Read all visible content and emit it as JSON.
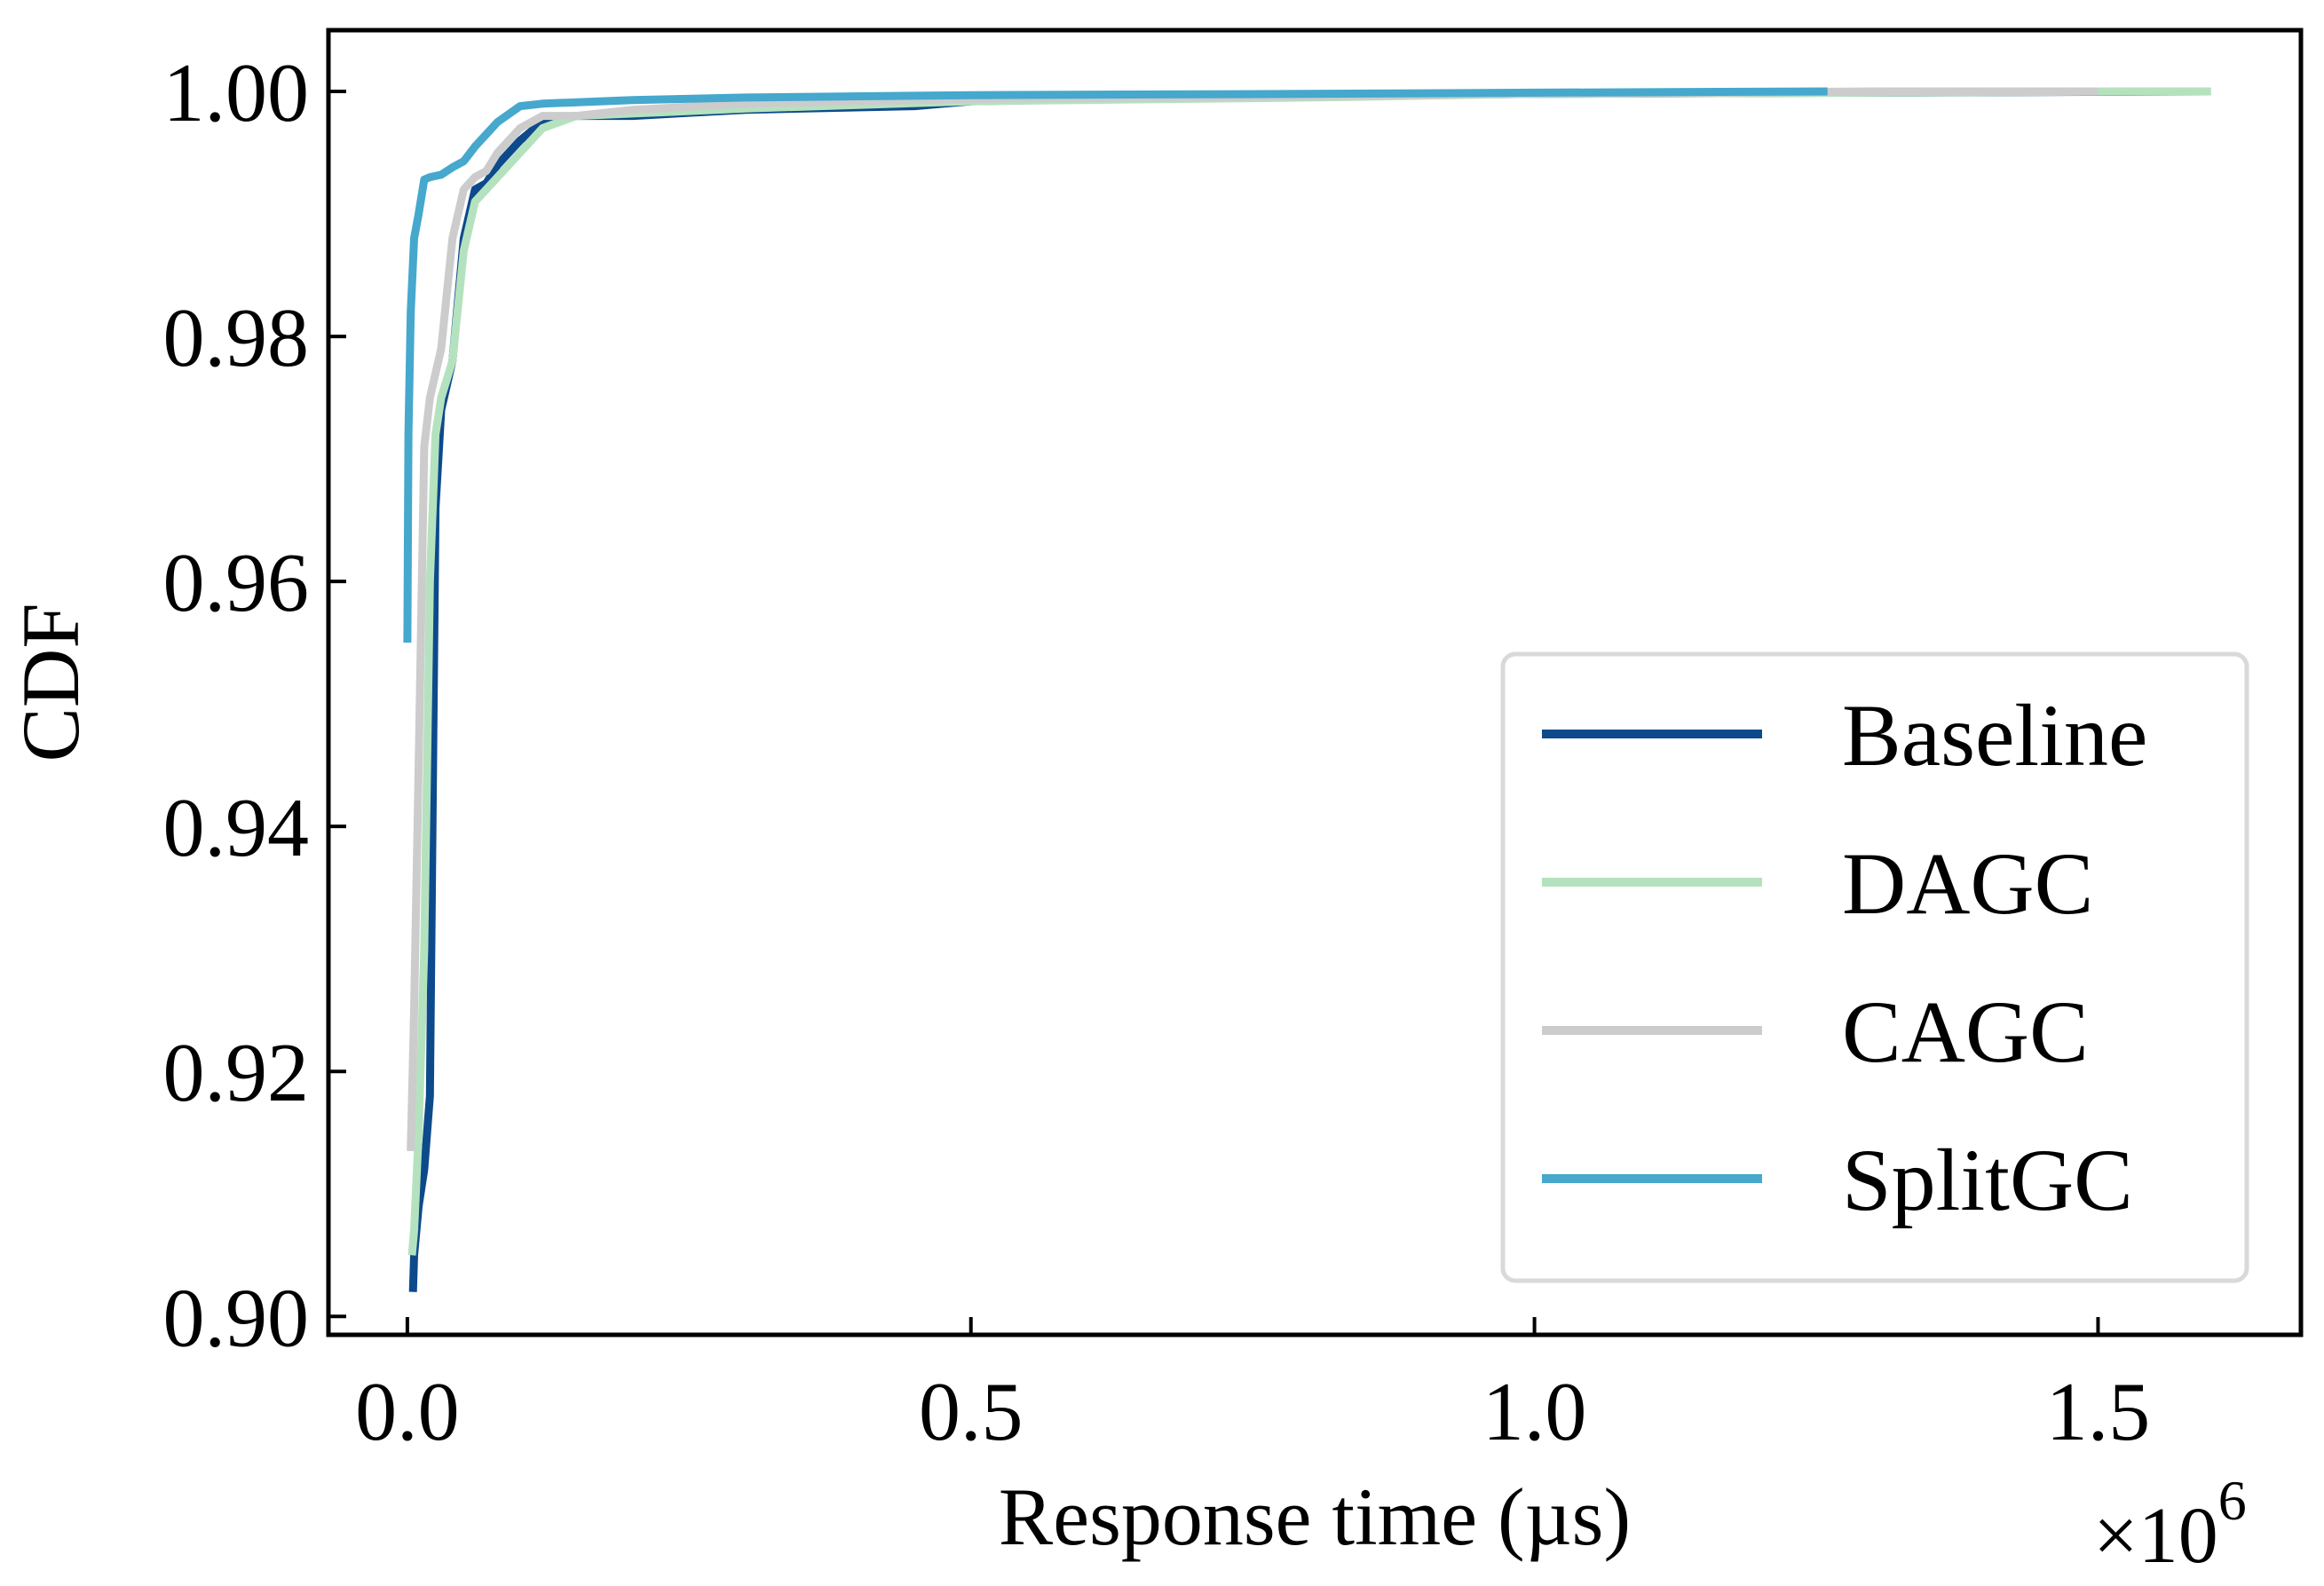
{
  "chart_data": {
    "type": "line",
    "title": "",
    "xlabel": "Response time (µs)",
    "ylabel": "CDF",
    "x_multiplier_base": "×10",
    "x_multiplier_exp": "6",
    "xlim": [
      -0.07,
      1.68
    ],
    "ylim": [
      0.8985,
      1.005
    ],
    "x_ticks": [
      0.0,
      0.5,
      1.0,
      1.5
    ],
    "x_tick_labels": [
      "0.0",
      "0.5",
      "1.0",
      "1.5"
    ],
    "y_ticks": [
      0.9,
      0.92,
      0.94,
      0.96,
      0.98,
      1.0
    ],
    "y_tick_labels": [
      "0.90",
      "0.92",
      "0.94",
      "0.96",
      "0.98",
      "1.00"
    ],
    "legend_position": "lower-right",
    "series": [
      {
        "name": "Baseline",
        "color": "#0d4a8c",
        "x": [
          0.005,
          0.006,
          0.01,
          0.015,
          0.02,
          0.025,
          0.03,
          0.04,
          0.05,
          0.06,
          0.07,
          0.08,
          0.09,
          0.1,
          0.12,
          0.15,
          0.2,
          0.3,
          0.45,
          0.5,
          0.7,
          1.0,
          1.3,
          1.6
        ],
        "y": [
          0.902,
          0.905,
          0.909,
          0.912,
          0.918,
          0.966,
          0.974,
          0.978,
          0.988,
          0.992,
          0.9925,
          0.994,
          0.995,
          0.996,
          0.9975,
          0.998,
          0.998,
          0.9985,
          0.9988,
          0.9992,
          0.9995,
          0.9998,
          0.9999,
          1.0
        ]
      },
      {
        "name": "DAGC",
        "color": "#b5e2be",
        "x": [
          0.004,
          0.006,
          0.01,
          0.015,
          0.02,
          0.025,
          0.03,
          0.04,
          0.05,
          0.06,
          0.07,
          0.08,
          0.1,
          0.12,
          0.15,
          0.2,
          0.3,
          0.5,
          0.8,
          1.0,
          1.3,
          1.55,
          1.6
        ],
        "y": [
          0.905,
          0.907,
          0.915,
          0.93,
          0.96,
          0.972,
          0.975,
          0.978,
          0.987,
          0.991,
          0.992,
          0.993,
          0.995,
          0.997,
          0.998,
          0.9982,
          0.9986,
          0.9992,
          0.9995,
          0.9998,
          0.9999,
          1.0,
          1.0
        ]
      },
      {
        "name": "CAGC",
        "color": "#cccccc",
        "x": [
          0.003,
          0.006,
          0.01,
          0.015,
          0.02,
          0.03,
          0.04,
          0.05,
          0.06,
          0.07,
          0.08,
          0.1,
          0.12,
          0.15,
          0.2,
          0.3,
          0.5,
          0.8,
          1.0,
          1.3,
          1.5
        ],
        "y": [
          0.9135,
          0.925,
          0.945,
          0.971,
          0.975,
          0.979,
          0.988,
          0.992,
          0.993,
          0.9935,
          0.995,
          0.997,
          0.998,
          0.998,
          0.9985,
          0.999,
          0.9994,
          0.9996,
          0.9998,
          1.0,
          1.0
        ]
      },
      {
        "name": "SplitGC",
        "color": "#45a8cc",
        "x": [
          0.0,
          0.001,
          0.003,
          0.006,
          0.01,
          0.015,
          0.02,
          0.03,
          0.04,
          0.05,
          0.06,
          0.08,
          0.1,
          0.12,
          0.2,
          0.3,
          0.5,
          0.8,
          1.0,
          1.26
        ],
        "y": [
          0.955,
          0.972,
          0.982,
          0.988,
          0.99,
          0.9928,
          0.993,
          0.9932,
          0.9938,
          0.9943,
          0.9955,
          0.9975,
          0.9988,
          0.999,
          0.9993,
          0.9995,
          0.9997,
          0.9998,
          0.9999,
          1.0
        ]
      }
    ]
  }
}
